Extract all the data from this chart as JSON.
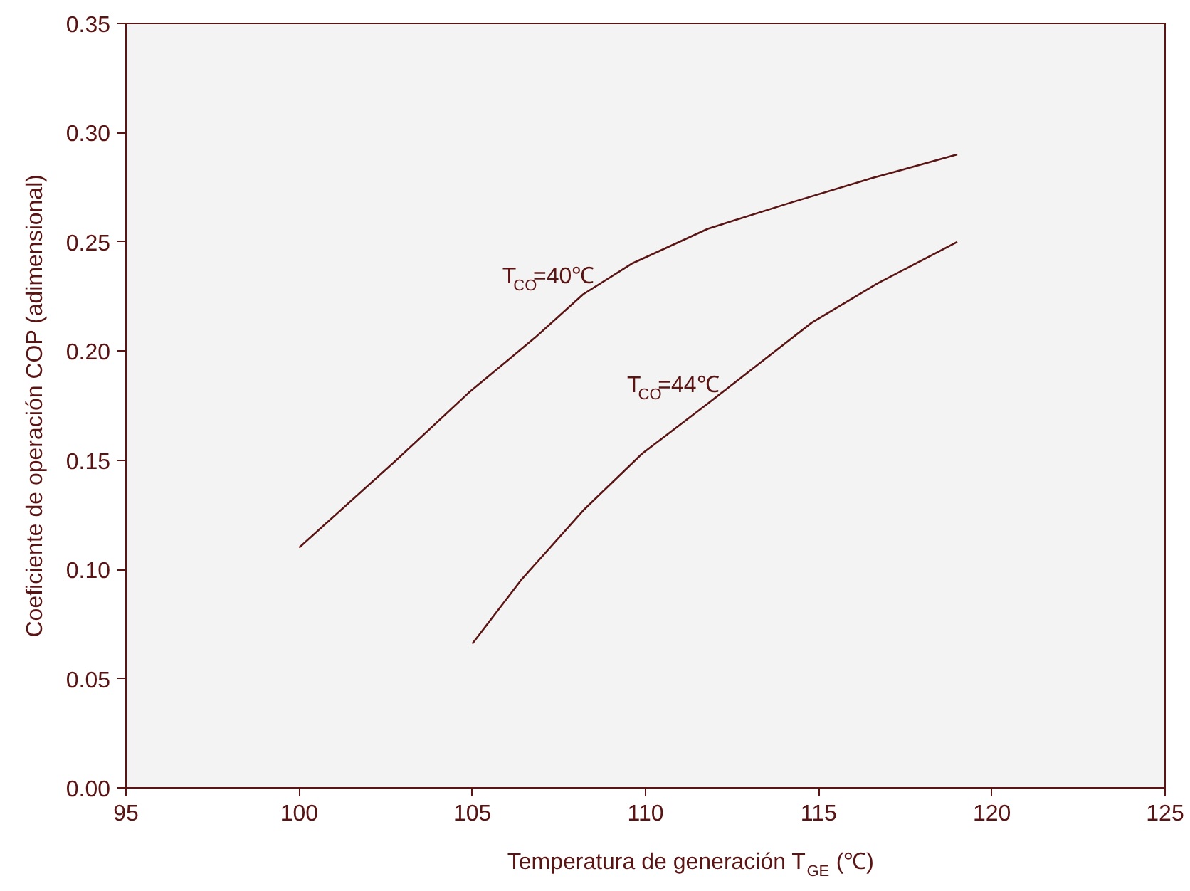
{
  "chart_data": {
    "type": "line",
    "xlabel": "Temperatura de generación T$_{GE}$ (℃)",
    "ylabel": "Coeficiente de operación COP (adimensional)",
    "xlim": [
      95,
      125
    ],
    "xticks": [
      95,
      100,
      105,
      110,
      115,
      120,
      125
    ],
    "ylim": [
      0,
      0.35
    ],
    "yticks": [
      {
        "value": 0,
        "label": "0.00"
      },
      {
        "value": 0.05,
        "label": "0.05"
      },
      {
        "value": 0.1,
        "label": "0.10"
      },
      {
        "value": 0.15,
        "label": "0.15"
      },
      {
        "value": 0.2,
        "label": "0.20"
      },
      {
        "value": 0.25,
        "label": "0.25"
      },
      {
        "value": 0.3,
        "label": "0.30"
      },
      {
        "value": 0.35,
        "label": "0.35"
      }
    ],
    "grid": false,
    "marker": "none",
    "line_style": "solid",
    "series": [
      {
        "name": "T$_{CO}$=40℃",
        "color": "#5a1414",
        "x": [
          100,
          102.8,
          104.9,
          106.8,
          108.2,
          109.6,
          111.8,
          114.2,
          116.5,
          119
        ],
        "values": [
          0.11,
          0.15,
          0.181,
          0.206,
          0.226,
          0.24,
          0.256,
          0.268,
          0.279,
          0.29
        ]
      },
      {
        "name": "T$_{CO}$=44℃",
        "color": "#5a1414",
        "x": [
          105,
          106.4,
          108.2,
          109.9,
          111.8,
          114.8,
          116.7,
          119
        ],
        "values": [
          0.066,
          0.095,
          0.127,
          0.153,
          0.176,
          0.213,
          0.231,
          0.25
        ]
      }
    ]
  }
}
